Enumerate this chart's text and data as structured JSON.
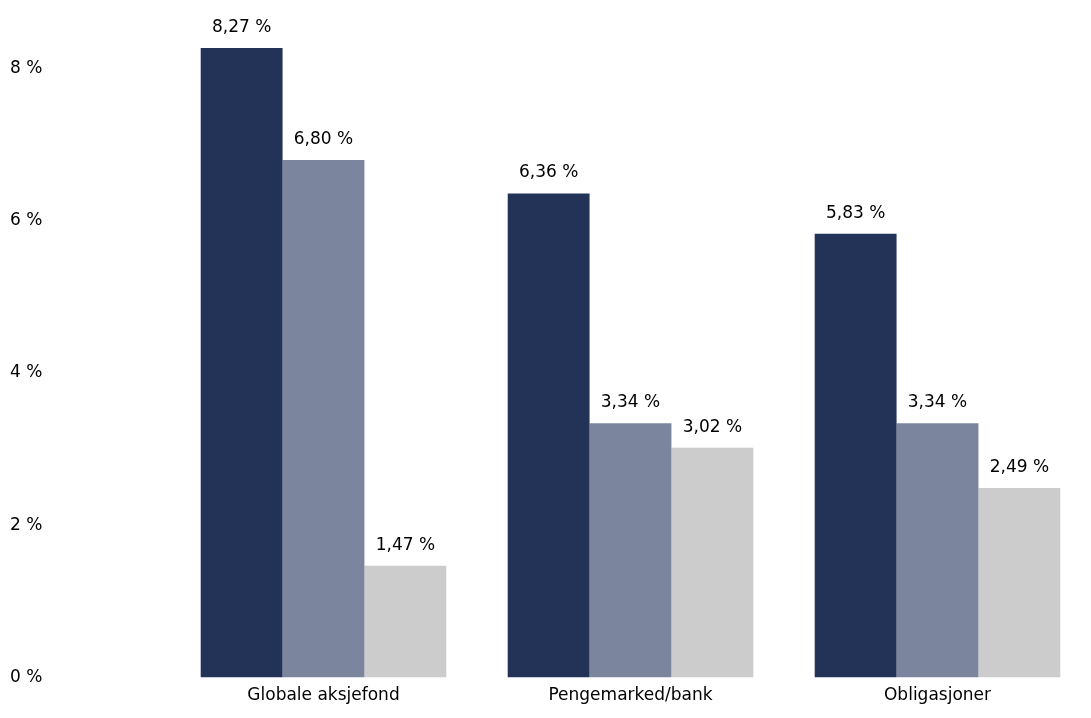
{
  "chart_data": {
    "type": "bar",
    "categories": [
      "Globale aksjefond",
      "Pengemarked/bank",
      "Obligasjoner"
    ],
    "series": [
      {
        "color": "#233358",
        "values": [
          8.27,
          6.36,
          5.83
        ],
        "value_labels": [
          "8,27 %",
          "6,36 %",
          "5,83 %"
        ]
      },
      {
        "color": "#7b869e",
        "values": [
          6.8,
          3.34,
          3.34
        ],
        "value_labels": [
          "6,80 %",
          "3,34 %",
          "3,34 %"
        ]
      },
      {
        "color": "#cccccc",
        "values": [
          1.47,
          3.02,
          2.49
        ],
        "value_labels": [
          "1,47 %",
          "3,02 %",
          "2,49 %"
        ]
      }
    ],
    "ylim": [
      0,
      8.27
    ],
    "yticks": [
      {
        "value": 0,
        "label": "0 %"
      },
      {
        "value": 2,
        "label": "2 %"
      },
      {
        "value": 4,
        "label": "4 %"
      },
      {
        "value": 6,
        "label": "6 %"
      },
      {
        "value": 8,
        "label": "8 %"
      }
    ],
    "grid": false,
    "legend": false
  }
}
